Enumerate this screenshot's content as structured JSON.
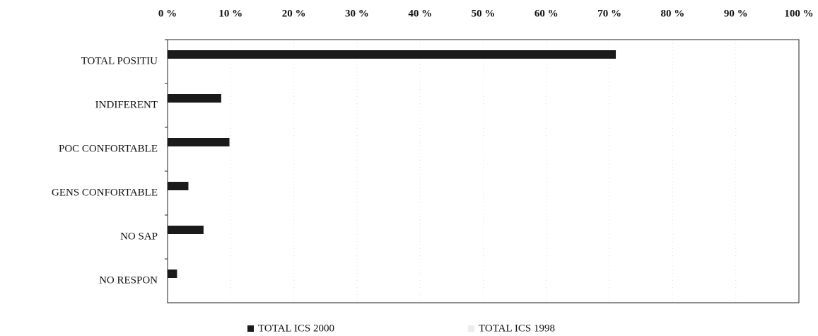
{
  "chart_data": {
    "type": "barh",
    "categories": [
      "TOTAL POSITIU",
      "INDIFERENT",
      "POC CONFORTABLE",
      "GENS CONFORTABLE",
      "NO SAP",
      "NO RESPON"
    ],
    "series": [
      {
        "name": "TOTAL ICS 2000",
        "color": "#1a1a1a",
        "values": [
          71,
          8.5,
          9.8,
          3.3,
          5.7,
          1.5
        ]
      },
      {
        "name": "TOTAL ICS 1998",
        "color": "#ececec",
        "values": [
          null,
          null,
          null,
          null,
          null,
          null
        ]
      }
    ],
    "xlim": [
      0,
      100
    ],
    "xticks": [
      {
        "value": 0,
        "label": "0 %"
      },
      {
        "value": 10,
        "label": "10 %"
      },
      {
        "value": 20,
        "label": "20 %"
      },
      {
        "value": 30,
        "label": "30 %"
      },
      {
        "value": 40,
        "label": "40 %"
      },
      {
        "value": 50,
        "label": "50 %"
      },
      {
        "value": 60,
        "label": "60 %"
      },
      {
        "value": 70,
        "label": "70 %"
      },
      {
        "value": 80,
        "label": "80 %"
      },
      {
        "value": 90,
        "label": "90 %"
      },
      {
        "value": 100,
        "label": "100 %"
      }
    ],
    "grid": true,
    "legend": "bottom"
  }
}
